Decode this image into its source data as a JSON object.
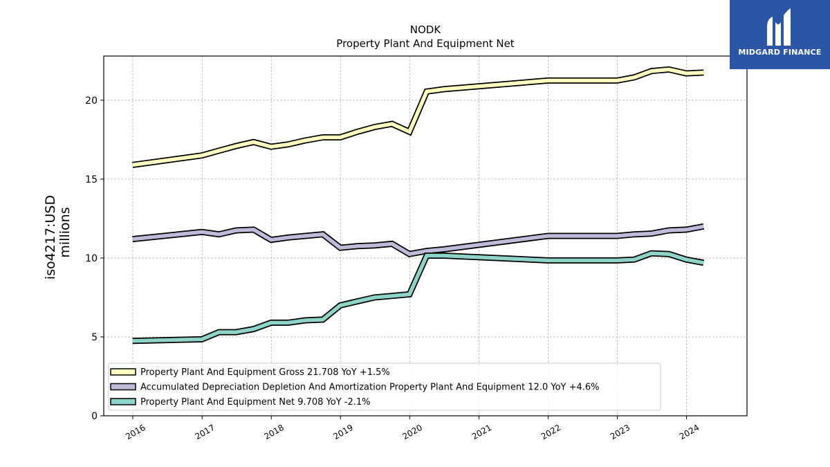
{
  "logo": {
    "text": "MIDGARD FINANCE",
    "color": "#2b56a6"
  },
  "chart_data": {
    "type": "line",
    "title": "NODK",
    "subtitle": "Property Plant And Equipment Net",
    "ylabel_line1": "iso4217:USD",
    "ylabel_line2": "millions",
    "xlabel": "",
    "ylim": [
      0,
      22.8
    ],
    "xlim": [
      "2015-08-01",
      "2024-11-15"
    ],
    "yticks": [
      0,
      5,
      10,
      15,
      20
    ],
    "xticks": [
      "2016",
      "2017",
      "2018",
      "2019",
      "2020",
      "2021",
      "2022",
      "2023",
      "2024"
    ],
    "grid": true,
    "legend_position": "lower-left",
    "series": [
      {
        "name": "Property Plant And Equipment Gross",
        "legend_label": "Property Plant And Equipment Gross  21.708 YoY +1.5%",
        "color": "#ffffbf",
        "points": [
          [
            "2015-12-31",
            15.9
          ],
          [
            "2016-12-31",
            16.5
          ],
          [
            "2017-03-31",
            16.8
          ],
          [
            "2017-06-30",
            17.1
          ],
          [
            "2017-09-30",
            17.35
          ],
          [
            "2017-12-31",
            17.05
          ],
          [
            "2018-03-31",
            17.2
          ],
          [
            "2018-06-30",
            17.45
          ],
          [
            "2018-09-30",
            17.65
          ],
          [
            "2018-12-31",
            17.65
          ],
          [
            "2019-03-31",
            18.0
          ],
          [
            "2019-06-30",
            18.3
          ],
          [
            "2019-09-30",
            18.5
          ],
          [
            "2019-12-31",
            18.0
          ],
          [
            "2020-03-31",
            20.55
          ],
          [
            "2020-06-30",
            20.7
          ],
          [
            "2021-12-31",
            21.25
          ],
          [
            "2022-12-31",
            21.25
          ],
          [
            "2023-03-31",
            21.45
          ],
          [
            "2023-06-30",
            21.85
          ],
          [
            "2023-09-30",
            21.95
          ],
          [
            "2023-12-31",
            21.7
          ],
          [
            "2024-03-31",
            21.75
          ]
        ]
      },
      {
        "name": "Accumulated Depreciation Depletion And Amortization Property Plant And Equipment",
        "legend_label": "Accumulated Depreciation Depletion And Amortization Property Plant And Equipment  12.0 YoY +4.6%",
        "color": "#bebada",
        "points": [
          [
            "2015-12-31",
            11.2
          ],
          [
            "2016-12-31",
            11.65
          ],
          [
            "2017-03-31",
            11.5
          ],
          [
            "2017-06-30",
            11.75
          ],
          [
            "2017-09-30",
            11.8
          ],
          [
            "2017-12-31",
            11.15
          ],
          [
            "2018-03-31",
            11.3
          ],
          [
            "2018-06-30",
            11.4
          ],
          [
            "2018-09-30",
            11.5
          ],
          [
            "2018-12-31",
            10.65
          ],
          [
            "2019-03-31",
            10.75
          ],
          [
            "2019-06-30",
            10.8
          ],
          [
            "2019-09-30",
            10.9
          ],
          [
            "2019-12-31",
            10.25
          ],
          [
            "2020-03-31",
            10.45
          ],
          [
            "2020-06-30",
            10.55
          ],
          [
            "2021-12-31",
            11.4
          ],
          [
            "2022-12-31",
            11.4
          ],
          [
            "2023-03-31",
            11.5
          ],
          [
            "2023-06-30",
            11.55
          ],
          [
            "2023-09-30",
            11.75
          ],
          [
            "2023-12-31",
            11.8
          ],
          [
            "2024-03-31",
            12.0
          ]
        ]
      },
      {
        "name": "Property Plant And Equipment Net",
        "legend_label": "Property Plant And Equipment Net  9.708 YoY -2.1%",
        "color": "#8dd3c7",
        "points": [
          [
            "2015-12-31",
            4.75
          ],
          [
            "2016-12-31",
            4.85
          ],
          [
            "2017-03-31",
            5.3
          ],
          [
            "2017-06-30",
            5.3
          ],
          [
            "2017-09-30",
            5.5
          ],
          [
            "2017-12-31",
            5.9
          ],
          [
            "2018-03-31",
            5.9
          ],
          [
            "2018-06-30",
            6.05
          ],
          [
            "2018-09-30",
            6.1
          ],
          [
            "2018-12-31",
            7.0
          ],
          [
            "2019-03-31",
            7.25
          ],
          [
            "2019-06-30",
            7.5
          ],
          [
            "2019-09-30",
            7.6
          ],
          [
            "2019-12-31",
            7.7
          ],
          [
            "2020-03-31",
            10.15
          ],
          [
            "2020-06-30",
            10.15
          ],
          [
            "2021-12-31",
            9.85
          ],
          [
            "2022-12-31",
            9.85
          ],
          [
            "2023-03-31",
            9.9
          ],
          [
            "2023-06-30",
            10.3
          ],
          [
            "2023-09-30",
            10.25
          ],
          [
            "2023-12-31",
            9.9
          ],
          [
            "2024-03-31",
            9.7
          ]
        ]
      }
    ]
  }
}
